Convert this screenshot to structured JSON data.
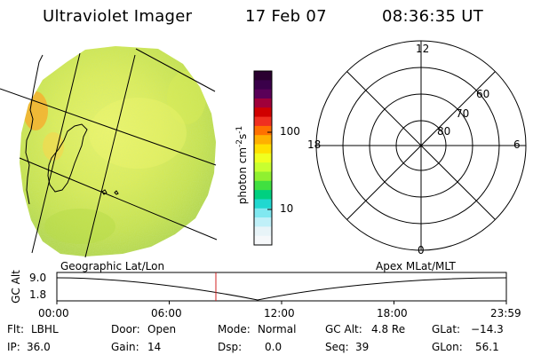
{
  "header": {
    "instrument": "Ultraviolet Imager",
    "date": "17 Feb 07",
    "time": "08:36:35 UT"
  },
  "colorbar": {
    "unit": "photon cm",
    "unit_exp1": "-2",
    "unit_s": "s",
    "unit_exp2": "-1",
    "ticks": [
      "100",
      "10"
    ],
    "colors": [
      "#2a0030",
      "#3a004a",
      "#5a0058",
      "#a0003a",
      "#d00000",
      "#f03020",
      "#ff7000",
      "#ffb000",
      "#ffe000",
      "#f0ff20",
      "#c8ff30",
      "#90f030",
      "#40e040",
      "#00d080",
      "#20d8d0",
      "#80e8f0",
      "#c0f0f8",
      "#e8f4f8",
      "#f6f8fa"
    ]
  },
  "polar": {
    "mlt_top": "12",
    "mlt_right": "6",
    "mlt_bottom": "0",
    "mlt_left": "18",
    "lat_labels": [
      "60",
      "70",
      "80"
    ]
  },
  "timeline": {
    "left_label": "Geographic Lat/Lon",
    "right_label": "Apex MLat/MLT",
    "axis_label": "GC Alt",
    "y_top": "9.0",
    "y_bottom": "1.8",
    "x_ticks": [
      "00:00",
      "06:00",
      "12:00",
      "18:00",
      "23:59"
    ],
    "current_time": "08:36:35"
  },
  "status": {
    "flt_label": "Flt:",
    "flt_value": "LBHL",
    "ip_label": "IP:",
    "ip_value": "36.0",
    "door_label": "Door:",
    "door_value": "Open",
    "gain_label": "Gain:",
    "gain_value": "14",
    "mode_label": "Mode:",
    "mode_value": "Normal",
    "dsp_label": "Dsp:",
    "dsp_value": "0.0",
    "gcalt_label": "GC Alt:",
    "gcalt_value": "4.8 Re",
    "seq_label": "Seq:",
    "seq_value": "39",
    "glat_label": "GLat:",
    "glat_value": "−14.3",
    "glon_label": "GLon:",
    "glon_value": "56.1"
  }
}
